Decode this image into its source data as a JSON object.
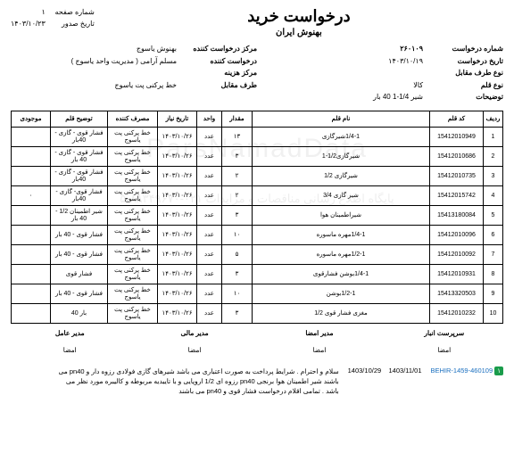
{
  "header": {
    "title": "درخواست خرید",
    "subtitle": "بهنوش ایران",
    "page_label": "شماره صفحه",
    "page_value": "۱",
    "issue_date_label": "تاریخ صدور",
    "issue_date_value": "۱۴۰۳/۱۰/۲۳"
  },
  "info": {
    "req_no_label": "شماره درخواست",
    "req_no_value": "۲۶۰۱۰۹",
    "req_date_label": "تاریخ درخواست",
    "req_date_value": "۱۴۰۳/۱۰/۱۹",
    "item_type_label": "نوع قلم",
    "item_type_value": "کالا",
    "req_center_label": "مرکز درخواست کننده",
    "req_center_value": "بهنوش یاسوج",
    "requester_label": "درخواست کننده",
    "requester_value": "مسلم  آرامی ( مدیریت واحد یاسوج )",
    "cost_center_label": "مرکز هزینه",
    "cost_center_value": "",
    "counter_type_label": "نوع طرف مقابل",
    "counter_type_value": "",
    "counter_label": "طرف مقابل",
    "counter_value": "خط پرکنی پت یاسوج",
    "notes_label": "توضیحات",
    "notes_value": "شیر 1/4-1  40 بار"
  },
  "columns": {
    "idx": "ردیف",
    "code": "کد قلم",
    "name": "نام قلم",
    "qty": "مقدار",
    "unit": "واحد",
    "need_date": "تاریخ نیاز",
    "consumer": "مصرف کننده",
    "desc": "توضیح قلم",
    "stock": "موجودی"
  },
  "rows": [
    {
      "idx": "1",
      "code": "15412010949",
      "name": "1/4-1شیرگازی",
      "qty": "۱۳",
      "unit": "عدد",
      "date": "۱۴۰۳/۱۰/۲۶",
      "cons": "خط پرکنی پت یاسوج",
      "desc": "فشار قوی - گازی - 40بار",
      "stock": ""
    },
    {
      "idx": "2",
      "code": "15412010686",
      "name": "شیرگازی1/2-1",
      "qty": "۳",
      "unit": "عدد",
      "date": "۱۴۰۳/۱۰/۲۶",
      "cons": "خط پرکنی پت یاسوج",
      "desc": "فشار قوی - گازی - 40 بار",
      "stock": ""
    },
    {
      "idx": "3",
      "code": "15412010735",
      "name": "شیرگازی 1/2",
      "qty": "۲",
      "unit": "عدد",
      "date": "۱۴۰۳/۱۰/۲۶",
      "cons": "خط پرکنی پت یاسوج",
      "desc": "فشار قوی - گازی - 40بار",
      "stock": ""
    },
    {
      "idx": "4",
      "code": "15412015742",
      "name": "شیر گازی 3/4",
      "qty": "۲",
      "unit": "عدد",
      "date": "۱۴۰۳/۱۰/۲۶",
      "cons": "خط پرکنی پت یاسوج",
      "desc": "فشار قوی- گازی - 40بار",
      "stock": "۰"
    },
    {
      "idx": "5",
      "code": "15413180084",
      "name": "شیراطمینان هوا",
      "qty": "۳",
      "unit": "عدد",
      "date": "۱۴۰۳/۱۰/۲۶",
      "cons": "خط پرکنی پت یاسوج",
      "desc": "شیر اطمینان 1/2 - 40 بار",
      "stock": ""
    },
    {
      "idx": "6",
      "code": "15412010096",
      "name": "1/4-1مهره ماسوره",
      "qty": "۱۰",
      "unit": "عدد",
      "date": "۱۴۰۳/۱۰/۲۶",
      "cons": "خط پرکنی پت یاسوج",
      "desc": "فشار قوی - 40 بار",
      "stock": ""
    },
    {
      "idx": "7",
      "code": "15412010092",
      "name": "1/2-1مهره ماسوره",
      "qty": "۵",
      "unit": "عدد",
      "date": "۱۴۰۳/۱۰/۲۶",
      "cons": "خط پرکنی پت یاسوج",
      "desc": "فشار قوی - 40 بار",
      "stock": ""
    },
    {
      "idx": "8",
      "code": "15412010931",
      "name": "1/4-1بوشن فشارقوی",
      "qty": "۳",
      "unit": "عدد",
      "date": "۱۴۰۳/۱۰/۲۶",
      "cons": "خط پرکنی پت یاسوج",
      "desc": "فشار قوی",
      "stock": ""
    },
    {
      "idx": "9",
      "code": "15413320503",
      "name": "1/2-1بوشن",
      "qty": "۱۰",
      "unit": "عدد",
      "date": "۱۴۰۳/۱۰/۲۶",
      "cons": "خط پرکنی پت یاسوج",
      "desc": "فشار قوی - 40 بار",
      "stock": ""
    },
    {
      "idx": "10",
      "code": "15412010232",
      "name": "مغزی فشار قوی 1/2",
      "qty": "۳",
      "unit": "عدد",
      "date": "۱۴۰۳/۱۰/۲۶",
      "cons": "خط پرکنی پت یاسوج",
      "desc": "بار 40",
      "stock": ""
    }
  ],
  "signatures": {
    "s1_title": "سرپرست انبار",
    "s2_title": "مدیر امضا",
    "s3_title": "مدیر مالی",
    "s4_title": "مدیر عامل",
    "sub": "امضا"
  },
  "footer": {
    "badge": "۱",
    "ref": "BEHIR-1459-460109",
    "date1": "1403/10/29",
    "date2": "1403/11/01",
    "note": "سلام و احترام . شرایط پرداخت به صورت اعتباری می باشد شیرهای گازی فولادی رزوه دار و pn40 می باشند شیر اطمینان هوا برنجی pn40 رزوه ای 1/2 اروپایی و با تاییدیه مربوطه و کالیبره مورد نظر می باشد . تمامی اقلام درخواست فشار قوی و pn40 می باشند"
  },
  "watermark": {
    "text1": "ParsNamadData",
    "text2": "پایگاه اطلاع رسانی مناقصات و مزایدات  ۰۲۱-۸۸۳۴۹۶۷۰-۵"
  }
}
